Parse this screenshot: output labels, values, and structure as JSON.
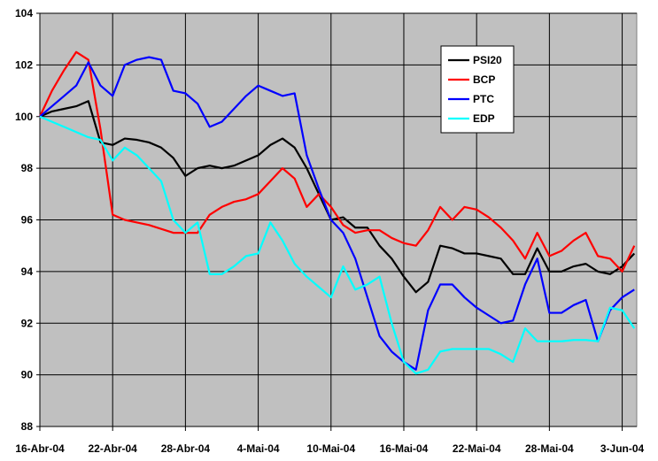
{
  "chart_data": {
    "type": "line",
    "x": [
      0,
      1,
      2,
      3,
      4,
      5,
      6,
      7,
      8,
      9,
      10,
      11,
      12,
      13,
      14,
      15,
      16,
      17,
      18,
      19,
      20,
      21,
      22,
      23,
      24,
      25,
      26,
      27,
      28,
      29,
      30,
      31,
      32,
      33,
      34,
      35,
      36,
      37,
      38,
      39,
      40,
      41,
      42,
      43,
      44,
      45,
      46,
      47,
      48,
      49
    ],
    "series": [
      {
        "name": "PSI20",
        "color": "#000000",
        "values": [
          100,
          100.2,
          100.3,
          100.4,
          100.6,
          99.0,
          98.9,
          99.15,
          99.1,
          99.0,
          98.8,
          98.4,
          97.7,
          98.0,
          98.1,
          98.0,
          98.1,
          98.3,
          98.5,
          98.9,
          99.15,
          98.8,
          98.0,
          97.0,
          96.0,
          96.1,
          95.7,
          95.7,
          95.0,
          94.5,
          93.8,
          93.2,
          93.6,
          95.0,
          94.9,
          94.7,
          94.7,
          94.6,
          94.5,
          93.9,
          93.9,
          94.9,
          94.0,
          94.0,
          94.2,
          94.3,
          94.0,
          93.9,
          94.2,
          94.7
        ]
      },
      {
        "name": "BCP",
        "color": "#ff0000",
        "values": [
          100,
          101.0,
          101.8,
          102.5,
          102.2,
          99.5,
          96.2,
          96.0,
          95.9,
          95.8,
          95.65,
          95.5,
          95.5,
          95.5,
          96.2,
          96.5,
          96.7,
          96.8,
          97.0,
          97.5,
          98.0,
          97.6,
          96.5,
          97.0,
          96.5,
          95.8,
          95.5,
          95.6,
          95.6,
          95.3,
          95.1,
          95.0,
          95.6,
          96.5,
          96.0,
          96.5,
          96.4,
          96.1,
          95.7,
          95.2,
          94.5,
          95.5,
          94.6,
          94.8,
          95.2,
          95.5,
          94.6,
          94.5,
          94.0,
          95.0
        ]
      },
      {
        "name": "PTC",
        "color": "#0000ff",
        "values": [
          100,
          100.4,
          100.8,
          101.2,
          102.1,
          101.2,
          100.8,
          102.0,
          102.2,
          102.3,
          102.2,
          101.0,
          100.9,
          100.5,
          99.6,
          99.8,
          100.3,
          100.8,
          101.2,
          101.0,
          100.8,
          100.9,
          98.5,
          97.2,
          96.0,
          95.5,
          94.5,
          93.0,
          91.5,
          90.9,
          90.5,
          90.2,
          92.5,
          93.5,
          93.5,
          93.0,
          92.6,
          92.3,
          92.0,
          92.1,
          93.5,
          94.5,
          92.4,
          92.4,
          92.7,
          92.9,
          91.3,
          92.5,
          93.0,
          93.3
        ]
      },
      {
        "name": "EDP",
        "color": "#00ffff",
        "values": [
          100,
          99.8,
          99.6,
          99.4,
          99.2,
          99.1,
          98.3,
          98.8,
          98.5,
          98.0,
          97.5,
          96.0,
          95.5,
          95.9,
          93.9,
          93.9,
          94.2,
          94.6,
          94.7,
          95.9,
          95.2,
          94.3,
          93.8,
          93.4,
          93.0,
          94.2,
          93.3,
          93.5,
          93.8,
          92.0,
          90.5,
          90.05,
          90.2,
          90.9,
          91.0,
          91.0,
          91.0,
          91.0,
          90.8,
          90.5,
          91.8,
          91.3,
          91.3,
          91.3,
          91.35,
          91.35,
          91.3,
          92.6,
          92.5,
          91.8
        ]
      }
    ],
    "xlim": [
      0,
      49.2
    ],
    "xticks": [
      {
        "value": 0,
        "label": "16-Abr-04"
      },
      {
        "value": 6,
        "label": "22-Abr-04"
      },
      {
        "value": 12,
        "label": "28-Abr-04"
      },
      {
        "value": 18,
        "label": "4-Mai-04"
      },
      {
        "value": 24,
        "label": "10-Mai-04"
      },
      {
        "value": 30,
        "label": "16-Mai-04"
      },
      {
        "value": 36,
        "label": "22-Mai-04"
      },
      {
        "value": 42,
        "label": "28-Mai-04"
      },
      {
        "value": 48,
        "label": "3-Jun-04"
      }
    ],
    "ylim": [
      88,
      104
    ],
    "yticks": [
      88,
      90,
      92,
      94,
      96,
      98,
      100,
      102,
      104
    ],
    "grid": true
  }
}
